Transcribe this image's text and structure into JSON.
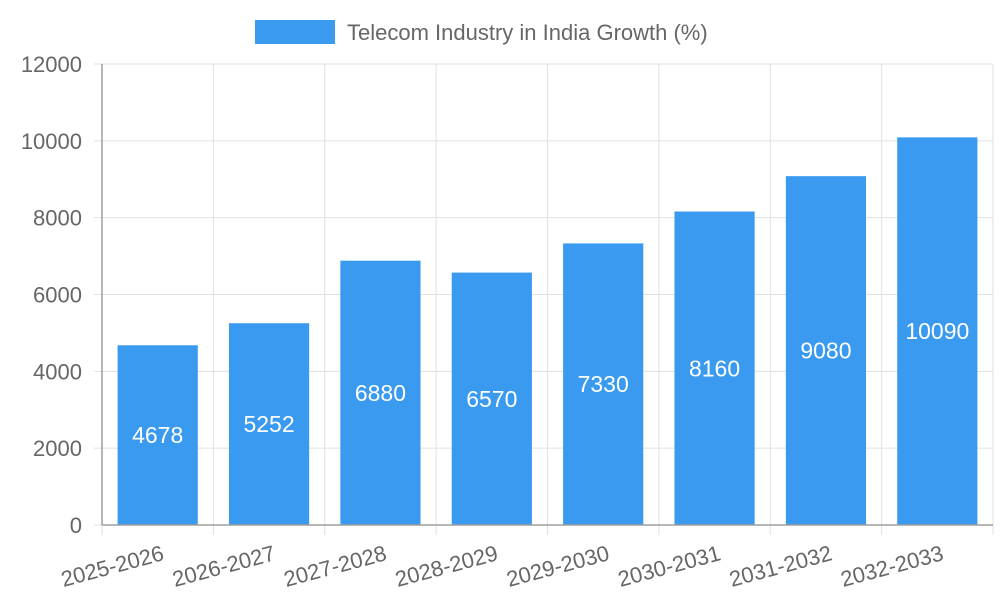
{
  "chart_data": {
    "type": "bar",
    "title": "",
    "xlabel": "",
    "ylabel": "",
    "categories": [
      "2025-2026",
      "2026-2027",
      "2027-2028",
      "2028-2029",
      "2029-2030",
      "2030-2031",
      "2031-2032",
      "2032-2033"
    ],
    "series": [
      {
        "name": "Telecom Industry in India Growth (%)",
        "values": [
          4678,
          5252,
          6880,
          6570,
          7330,
          8160,
          9080,
          10090
        ],
        "color": "#3a9af0"
      }
    ],
    "ylim": [
      0,
      12000
    ],
    "yticks": [
      0,
      2000,
      4000,
      6000,
      8000,
      10000,
      12000
    ],
    "grid": true,
    "legend_position": "top-center",
    "data_labels": true
  }
}
